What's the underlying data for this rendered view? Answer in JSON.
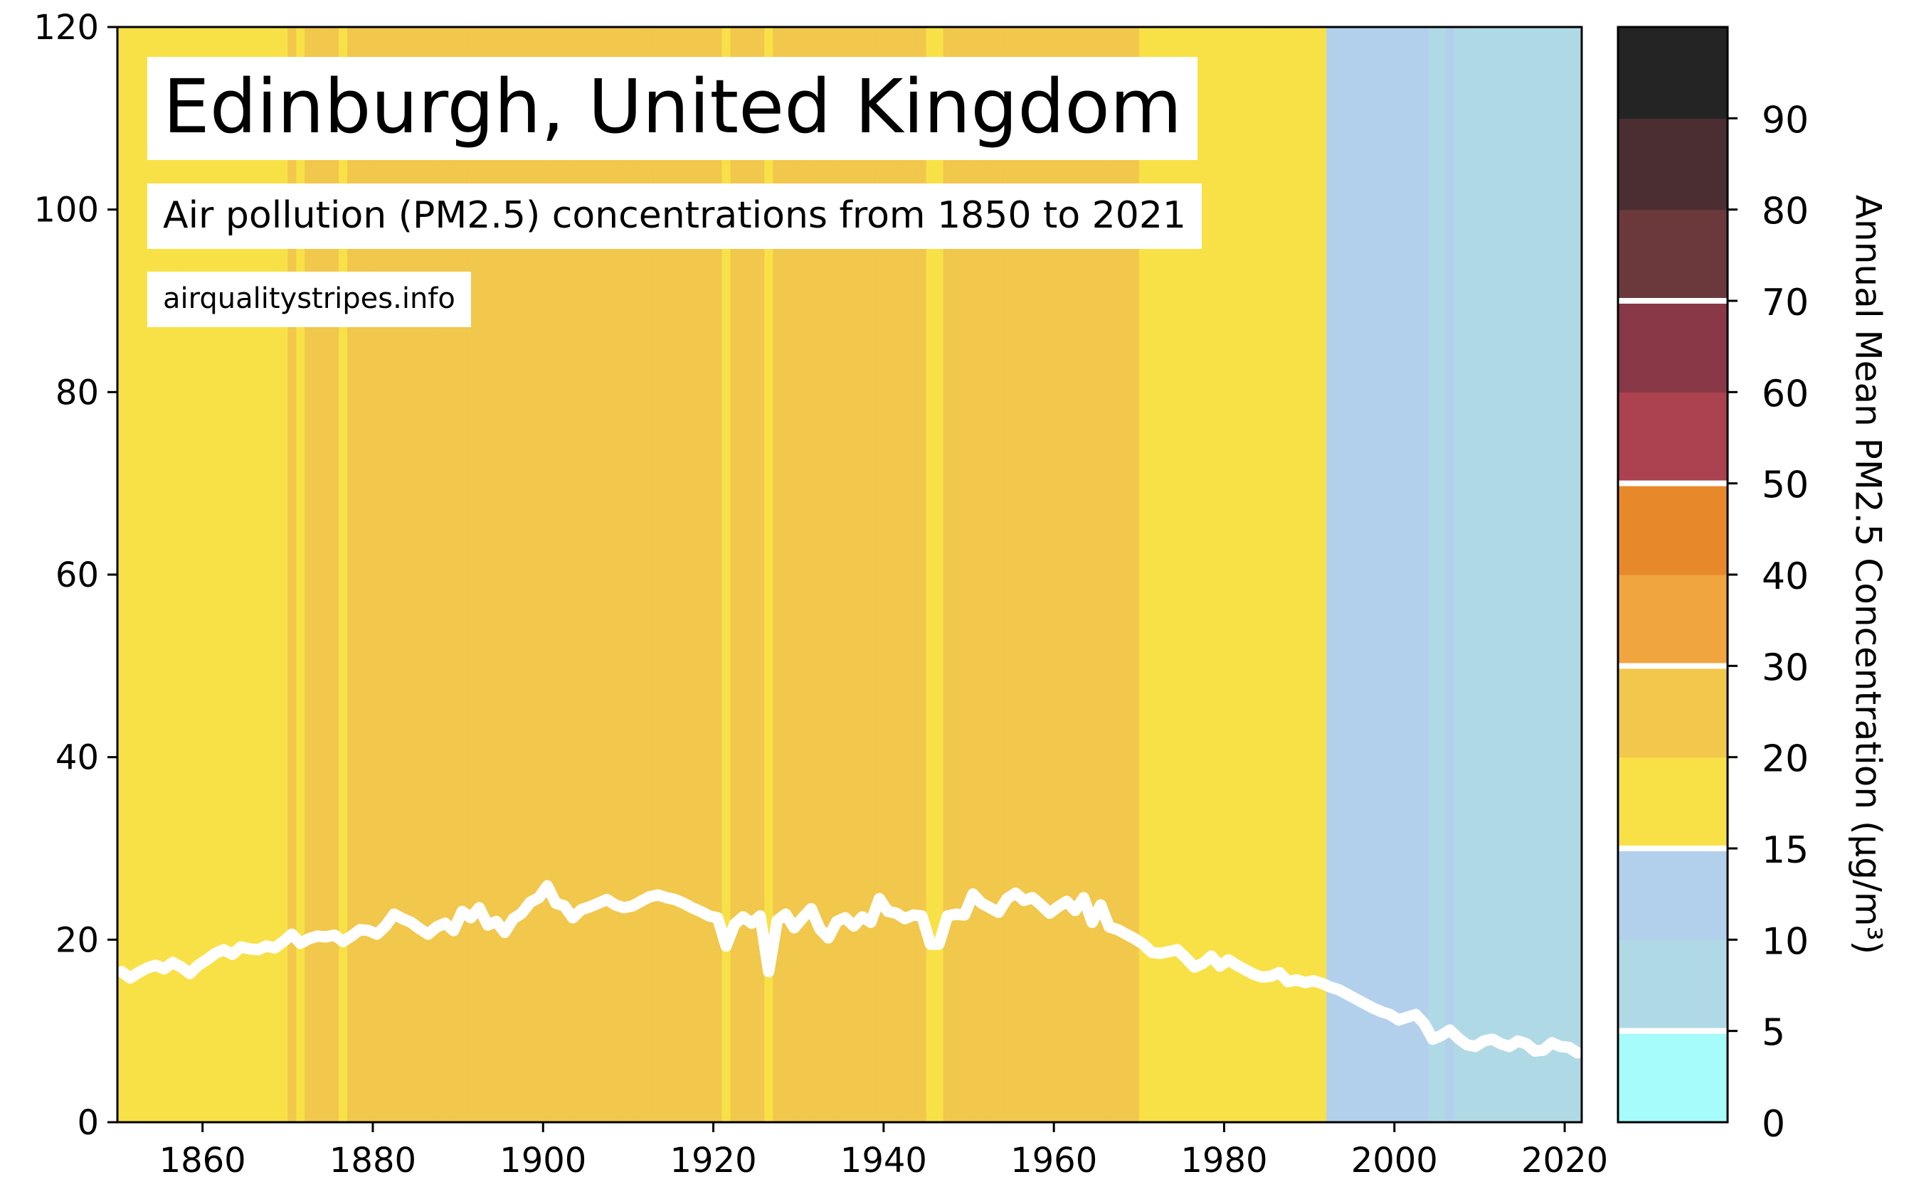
{
  "header": {
    "title": "Edinburgh, United Kingdom",
    "subtitle": "Air pollution (PM2.5) concentrations from 1850 to 2021",
    "source": "airqualitystripes.info"
  },
  "chart_data": {
    "type": "line",
    "title": "Edinburgh, United Kingdom",
    "subtitle": "Air pollution (PM2.5) concentrations from 1850 to 2021",
    "xlabel": "",
    "ylabel": "",
    "xlim": [
      1850,
      2022
    ],
    "ylim": [
      0,
      120
    ],
    "x_ticks": [
      1860,
      1880,
      1900,
      1920,
      1940,
      1960,
      1980,
      2000,
      2020
    ],
    "y_ticks": [
      0,
      20,
      40,
      60,
      80,
      100,
      120
    ],
    "grid": false,
    "line_color": "#ffffff",
    "background": "warming-stripes style vertical bands, one per year, coloured by the year's PM2.5 value",
    "series": [
      {
        "x": [
          1850,
          1851,
          1852,
          1853,
          1854,
          1855,
          1856,
          1857,
          1858,
          1859,
          1860,
          1861,
          1862,
          1863,
          1864,
          1865,
          1866,
          1867,
          1868,
          1869,
          1870,
          1871,
          1872,
          1873,
          1874,
          1875,
          1876,
          1877,
          1878,
          1879,
          1880,
          1881,
          1882,
          1883,
          1884,
          1885,
          1886,
          1887,
          1888,
          1889,
          1890,
          1891,
          1892,
          1893,
          1894,
          1895,
          1896,
          1897,
          1898,
          1899,
          1900,
          1901,
          1902,
          1903,
          1904,
          1905,
          1906,
          1907,
          1908,
          1909,
          1910,
          1911,
          1912,
          1913,
          1914,
          1915,
          1916,
          1917,
          1918,
          1919,
          1920,
          1921,
          1922,
          1923,
          1924,
          1925,
          1926,
          1927,
          1928,
          1929,
          1930,
          1931,
          1932,
          1933,
          1934,
          1935,
          1936,
          1937,
          1938,
          1939,
          1940,
          1941,
          1942,
          1943,
          1944,
          1945,
          1946,
          1947,
          1948,
          1949,
          1950,
          1951,
          1952,
          1953,
          1954,
          1955,
          1956,
          1957,
          1958,
          1959,
          1960,
          1961,
          1962,
          1963,
          1964,
          1965,
          1966,
          1967,
          1968,
          1969,
          1970,
          1971,
          1972,
          1973,
          1974,
          1975,
          1976,
          1977,
          1978,
          1979,
          1980,
          1981,
          1982,
          1983,
          1984,
          1985,
          1986,
          1987,
          1988,
          1989,
          1990,
          1991,
          1992,
          1993,
          1994,
          1995,
          1996,
          1997,
          1998,
          1999,
          2000,
          2001,
          2002,
          2003,
          2004,
          2005,
          2006,
          2007,
          2008,
          2009,
          2010,
          2011,
          2012,
          2013,
          2014,
          2015,
          2016,
          2017,
          2018,
          2019,
          2020,
          2021
        ],
        "values": [
          16.5,
          15.8,
          16.4,
          16.9,
          17.2,
          16.8,
          17.5,
          17.0,
          16.3,
          17.2,
          17.8,
          18.5,
          18.9,
          18.4,
          19.2,
          19.0,
          18.9,
          19.3,
          19.1,
          19.8,
          20.6,
          19.6,
          20.1,
          20.4,
          20.3,
          20.5,
          19.8,
          20.4,
          21.1,
          21.0,
          20.6,
          21.5,
          22.8,
          22.3,
          21.9,
          21.2,
          20.6,
          21.4,
          21.8,
          21.0,
          23.1,
          22.4,
          23.5,
          21.6,
          22.0,
          20.8,
          22.3,
          22.9,
          24.1,
          24.6,
          25.9,
          24.0,
          23.7,
          22.4,
          23.3,
          23.6,
          24.0,
          24.4,
          23.8,
          23.5,
          23.7,
          24.2,
          24.7,
          24.9,
          24.6,
          24.4,
          24.0,
          23.5,
          23.1,
          22.6,
          22.4,
          19.3,
          21.7,
          22.5,
          21.8,
          22.6,
          16.5,
          22.1,
          22.8,
          21.3,
          22.4,
          23.4,
          21.2,
          20.2,
          22.0,
          22.4,
          21.5,
          22.5,
          21.9,
          24.5,
          23.1,
          22.9,
          22.3,
          22.7,
          22.6,
          19.5,
          19.5,
          22.6,
          22.8,
          22.7,
          25.0,
          24.0,
          23.5,
          23.0,
          24.5,
          25.1,
          24.3,
          24.6,
          23.8,
          22.9,
          23.6,
          24.2,
          23.2,
          24.6,
          21.9,
          23.8,
          21.4,
          21.1,
          20.6,
          20.1,
          19.5,
          18.6,
          18.5,
          18.7,
          18.9,
          18.0,
          17.0,
          17.4,
          18.2,
          17.1,
          17.8,
          17.2,
          16.7,
          16.2,
          15.9,
          16.0,
          16.4,
          15.4,
          15.6,
          15.3,
          15.5,
          15.2,
          14.8,
          14.5,
          14.0,
          13.5,
          13.0,
          12.5,
          12.1,
          11.8,
          11.2,
          11.5,
          11.8,
          10.8,
          9.1,
          9.5,
          10.1,
          9.2,
          8.5,
          8.3,
          8.9,
          9.1,
          8.6,
          8.3,
          8.9,
          8.6,
          7.8,
          7.9,
          8.7,
          8.3,
          8.2,
          7.6
        ]
      }
    ],
    "stripe_colors": {
      "0-5": "#a6fbfb",
      "5-10": "#b0d9e6",
      "10-15": "#b2d0ec",
      "15-20": "#f8e147",
      "20-30": "#f1c74c",
      "30-40": "#f0a53e",
      "40-50": "#e7892b",
      "50-60": "#ac4150",
      "60-70": "#893847",
      "70-80": "#6b393c",
      "80-90": "#4a2e31",
      "90+": "#242424"
    },
    "colorbar": {
      "label": "Annual Mean PM2.5 Concentration (μg/m³)",
      "tick_labels": [
        "0",
        "5",
        "10",
        "15",
        "20",
        "30",
        "40",
        "50",
        "60",
        "70",
        "80",
        "90"
      ],
      "segments": [
        {
          "upper": "5",
          "color": "#a6fbfb"
        },
        {
          "upper": "10",
          "color": "#b0d9e6"
        },
        {
          "upper": "15",
          "color": "#b2d0ec"
        },
        {
          "upper": "20",
          "color": "#f8e147"
        },
        {
          "upper": "30",
          "color": "#f1c74c"
        },
        {
          "upper": "40",
          "color": "#f0a53e"
        },
        {
          "upper": "50",
          "color": "#e7892b"
        },
        {
          "upper": "60",
          "color": "#ac4150"
        },
        {
          "upper": "70",
          "color": "#893847"
        },
        {
          "upper": "80",
          "color": "#6b393c"
        },
        {
          "upper": "90",
          "color": "#4a2e31"
        },
        {
          "upper": "100",
          "color": "#242424"
        }
      ],
      "white_marks_after": [
        "5",
        "15",
        "30",
        "50",
        "70"
      ]
    }
  }
}
